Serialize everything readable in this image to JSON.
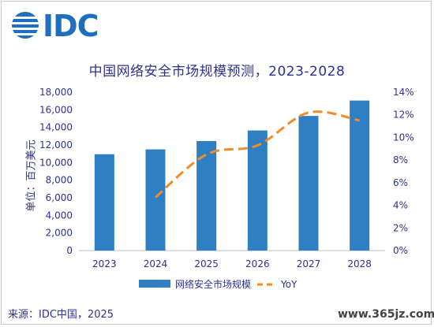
{
  "logo": {
    "text": "IDC"
  },
  "chart_data": {
    "type": "bar",
    "title": "中国网络安全市场规模预测，2023-2028",
    "ylabel": "单位：百万美元",
    "categories": [
      "2023",
      "2024",
      "2025",
      "2026",
      "2027",
      "2028"
    ],
    "ylim": [
      0,
      18000
    ],
    "y_ticks": [
      "0",
      "2,000",
      "4,000",
      "6,000",
      "8,000",
      "10,000",
      "12,000",
      "14,000",
      "16,000",
      "18,000"
    ],
    "y2lim": [
      0,
      14
    ],
    "y2_ticks": [
      "0%",
      "2%",
      "4%",
      "6%",
      "8%",
      "10%",
      "12%",
      "14%"
    ],
    "legend_placement": "bottom",
    "grid": false,
    "series": [
      {
        "name": "网络安全市场规模",
        "type": "bar",
        "axis": "left",
        "color": "#2e7fc3",
        "values": [
          10950,
          11500,
          12450,
          13650,
          15300,
          17050
        ]
      },
      {
        "name": "YoY",
        "type": "line",
        "axis": "right",
        "color": "#f28c28",
        "dashed": true,
        "values": [
          null,
          4.7,
          8.5,
          9.3,
          12.2,
          11.5
        ]
      }
    ]
  },
  "footer": {
    "source": "来源：IDC中国，2025",
    "watermark": "www.365jz.com"
  }
}
